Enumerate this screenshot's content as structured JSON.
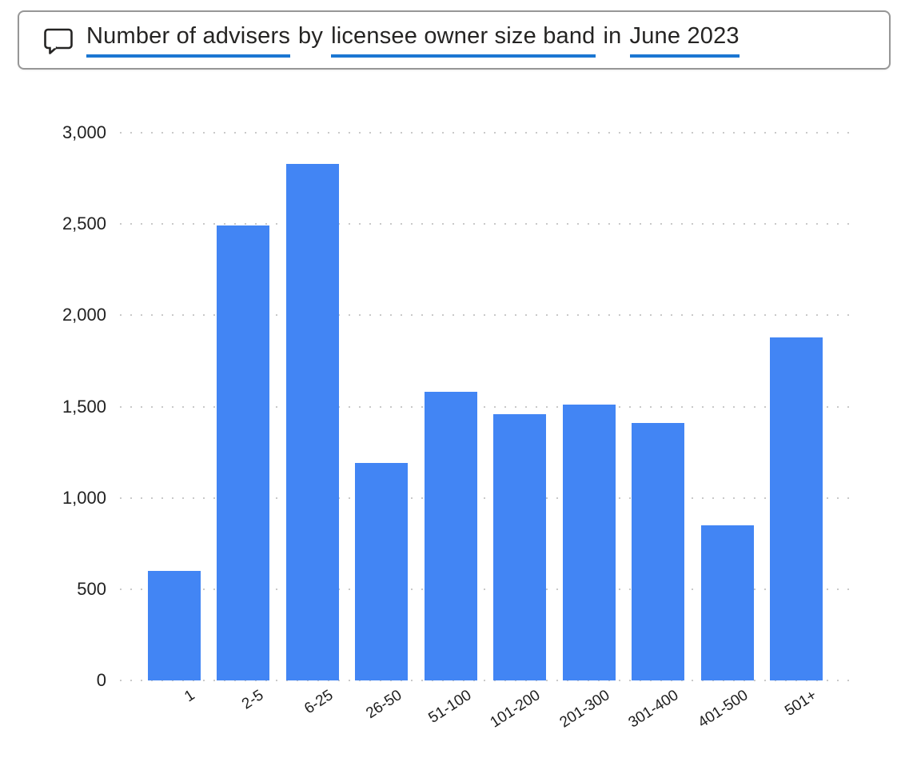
{
  "question_bar": {
    "icon": "speech-bubble-icon",
    "segments": [
      {
        "text": "Number of advisers",
        "underlined": true
      },
      {
        "text": "by",
        "underlined": false
      },
      {
        "text": "licensee owner size band",
        "underlined": true
      },
      {
        "text": "in",
        "underlined": false
      },
      {
        "text": "June 2023",
        "underlined": true
      }
    ],
    "full_text": "Number of advisers by licensee owner size band in June 2023"
  },
  "chart_data": {
    "type": "bar",
    "title": "Number of advisers by licensee owner size band in June 2023",
    "categories": [
      "1",
      "2-5",
      "6-25",
      "26-50",
      "51-100",
      "101-200",
      "201-300",
      "301-400",
      "401-500",
      "501+"
    ],
    "values": [
      600,
      2490,
      2830,
      1190,
      1580,
      1460,
      1510,
      1410,
      850,
      1880
    ],
    "xlabel": "",
    "ylabel": "",
    "ylim": [
      0,
      3000
    ],
    "yticks": [
      0,
      500,
      1000,
      1500,
      2000,
      2500,
      3000
    ],
    "ytick_labels": [
      "0",
      "500",
      "1,000",
      "1,500",
      "2,000",
      "2,500",
      "3,000"
    ],
    "grid": "horizontal-dotted",
    "legend": "none",
    "bar_color": "#4285f4"
  },
  "colors": {
    "bar": "#4285f4",
    "underline": "#1b76d2",
    "gridline": "#c9c9c9",
    "text": "#252423",
    "box_border": "#979797",
    "background": "#ffffff"
  }
}
